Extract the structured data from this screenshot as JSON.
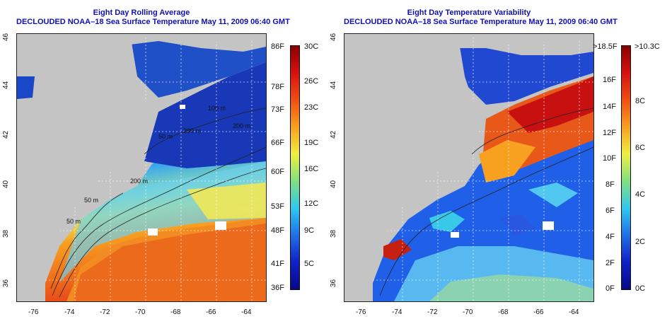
{
  "left": {
    "title_line1": "Eight Day Rolling Average",
    "title_line2": "DECLOUDED NOAA–18 Sea Surface Temperature May 11, 2009 06:40 GMT",
    "contour_labels": [
      "100 m",
      "200 m",
      "200 m",
      "200 m",
      "50 m",
      "50 m",
      "50 m"
    ],
    "colorbar_f": [
      "86F",
      "78F",
      "73F",
      "66F",
      "60F",
      "53F",
      "48F",
      "41F",
      "36F"
    ],
    "colorbar_c": [
      "30C",
      "26C",
      "23C",
      "19C",
      "16C",
      "12C",
      "9C",
      "5C"
    ]
  },
  "right": {
    "title_line1": "Eight Day Temperature Variability",
    "title_line2": "DECLOUDED NOAA–18 Sea Surface Temperature May 11, 2009 06:40 GMT",
    "colorbar_f": [
      ">18.5F",
      "16F",
      "14F",
      "12F",
      "10F",
      "8F",
      "6F",
      "4F",
      "2F",
      "0F"
    ],
    "colorbar_c": [
      ">10.3C",
      "8C",
      "6C",
      "4C",
      "2C",
      "0C"
    ]
  },
  "x_ticks": [
    "-76",
    "-74",
    "-72",
    "-70",
    "-68",
    "-66",
    "-64"
  ],
  "y_ticks": [
    "46",
    "44",
    "42",
    "40",
    "38",
    "36"
  ]
}
